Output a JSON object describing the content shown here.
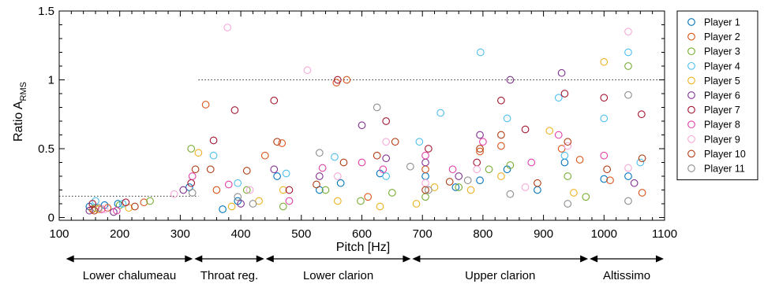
{
  "chart_data": {
    "type": "scatter",
    "title": "",
    "xlabel": "Pitch [Hz]",
    "ylabel_main": "Ratio A",
    "ylabel_sub": "RMS",
    "xlim": [
      100,
      1100
    ],
    "ylim": [
      -0.02,
      1.5
    ],
    "x_ticks": [
      100,
      200,
      300,
      400,
      500,
      600,
      700,
      800,
      900,
      1000,
      1100
    ],
    "x_tick_labels": [
      "100",
      "200",
      "300",
      "400",
      "500",
      "600",
      "700",
      "800",
      "900",
      "1000",
      "1100"
    ],
    "y_ticks": [
      0,
      0.5,
      1,
      1.5
    ],
    "y_tick_labels": [
      "0",
      "0.5",
      "1",
      "1.5"
    ],
    "grid": false,
    "legend_position": "outside-right",
    "reference_lines": [
      {
        "y": 1.0,
        "style": "dotted",
        "x_from": 330,
        "x_to": 1100
      },
      {
        "y": 0.155,
        "style": "dotted",
        "x_from": 100,
        "x_to": 330
      }
    ],
    "regions": [
      {
        "label": "Lower chalumeau",
        "x_from": 110,
        "x_to": 322
      },
      {
        "label": "Throat reg.",
        "x_from": 322,
        "x_to": 440
      },
      {
        "label": "Lower clarion",
        "x_from": 440,
        "x_to": 682
      },
      {
        "label": "Upper clarion",
        "x_from": 682,
        "x_to": 975
      },
      {
        "label": "Altissimo",
        "x_from": 975,
        "x_to": 1100
      }
    ],
    "series": [
      {
        "name": "Player 1",
        "color": "#0072bd",
        "points": [
          [
            150,
            0.08
          ],
          [
            175,
            0.09
          ],
          [
            197,
            0.1
          ],
          [
            315,
            0.22
          ],
          [
            370,
            0.06
          ],
          [
            395,
            0.12
          ],
          [
            460,
            0.3
          ],
          [
            530,
            0.2
          ],
          [
            565,
            0.25
          ],
          [
            630,
            0.32
          ],
          [
            705,
            0.3
          ],
          [
            755,
            0.22
          ],
          [
            795,
            0.27
          ],
          [
            840,
            0.35
          ],
          [
            890,
            0.2
          ],
          [
            935,
            0.4
          ],
          [
            1000,
            0.28
          ],
          [
            1040,
            0.3
          ]
        ]
      },
      {
        "name": "Player 2",
        "color": "#d95319",
        "points": [
          [
            155,
            0.06
          ],
          [
            180,
            0.07
          ],
          [
            240,
            0.11
          ],
          [
            342,
            0.82
          ],
          [
            360,
            0.2
          ],
          [
            440,
            0.45
          ],
          [
            468,
            0.54
          ],
          [
            558,
            0.98
          ],
          [
            575,
            1.0
          ],
          [
            610,
            0.15
          ],
          [
            705,
            0.35
          ],
          [
            795,
            0.48
          ],
          [
            830,
            0.52
          ],
          [
            930,
            0.5
          ],
          [
            960,
            0.42
          ],
          [
            1010,
            0.27
          ],
          [
            1063,
            0.18
          ]
        ]
      },
      {
        "name": "Player 3",
        "color": "#77ac30",
        "points": [
          [
            160,
            0.07
          ],
          [
            200,
            0.09
          ],
          [
            250,
            0.12
          ],
          [
            318,
            0.5
          ],
          [
            410,
            0.2
          ],
          [
            470,
            0.08
          ],
          [
            540,
            0.2
          ],
          [
            598,
            0.12
          ],
          [
            650,
            0.18
          ],
          [
            705,
            0.15
          ],
          [
            760,
            0.22
          ],
          [
            810,
            0.35
          ],
          [
            845,
            0.38
          ],
          [
            940,
            0.3
          ],
          [
            970,
            0.15
          ],
          [
            1040,
            1.1
          ]
        ]
      },
      {
        "name": "Player 4",
        "color": "#4dbeee",
        "points": [
          [
            160,
            0.12
          ],
          [
            205,
            0.1
          ],
          [
            355,
            0.45
          ],
          [
            395,
            0.25
          ],
          [
            475,
            0.32
          ],
          [
            555,
            0.44
          ],
          [
            640,
            0.3
          ],
          [
            695,
            0.55
          ],
          [
            730,
            0.76
          ],
          [
            796,
            1.2
          ],
          [
            840,
            0.72
          ],
          [
            925,
            0.87
          ],
          [
            935,
            0.45
          ],
          [
            1000,
            0.72
          ],
          [
            1040,
            1.2
          ],
          [
            1060,
            0.4
          ]
        ]
      },
      {
        "name": "Player 5",
        "color": "#edb120",
        "points": [
          [
            165,
            0.06
          ],
          [
            215,
            0.07
          ],
          [
            330,
            0.47
          ],
          [
            385,
            0.08
          ],
          [
            430,
            0.12
          ],
          [
            470,
            0.2
          ],
          [
            560,
            0.12
          ],
          [
            630,
            0.08
          ],
          [
            690,
            0.1
          ],
          [
            720,
            0.22
          ],
          [
            780,
            0.2
          ],
          [
            830,
            0.3
          ],
          [
            910,
            0.63
          ],
          [
            950,
            0.18
          ],
          [
            1000,
            1.13
          ]
        ]
      },
      {
        "name": "Player 6",
        "color": "#7e2f8e",
        "points": [
          [
            150,
            0.05
          ],
          [
            190,
            0.04
          ],
          [
            305,
            0.2
          ],
          [
            400,
            0.1
          ],
          [
            455,
            0.35
          ],
          [
            530,
            0.3
          ],
          [
            600,
            0.67
          ],
          [
            640,
            0.43
          ],
          [
            705,
            0.4
          ],
          [
            760,
            0.3
          ],
          [
            795,
            0.6
          ],
          [
            845,
            1.0
          ],
          [
            930,
            1.05
          ],
          [
            1050,
            0.25
          ]
        ]
      },
      {
        "name": "Player 7",
        "color": "#a2142f",
        "points": [
          [
            155,
            0.1
          ],
          [
            210,
            0.11
          ],
          [
            318,
            0.25
          ],
          [
            355,
            0.56
          ],
          [
            390,
            0.78
          ],
          [
            455,
            0.85
          ],
          [
            480,
            0.2
          ],
          [
            560,
            1.0
          ],
          [
            640,
            0.7
          ],
          [
            710,
            0.5
          ],
          [
            790,
            0.4
          ],
          [
            830,
            0.85
          ],
          [
            870,
            0.64
          ],
          [
            935,
            0.9
          ],
          [
            1000,
            0.87
          ],
          [
            1062,
            0.75
          ]
        ]
      },
      {
        "name": "Player 8",
        "color": "#e040a8",
        "points": [
          [
            170,
            0.06
          ],
          [
            195,
            0.05
          ],
          [
            320,
            0.3
          ],
          [
            380,
            0.24
          ],
          [
            480,
            0.12
          ],
          [
            535,
            0.36
          ],
          [
            600,
            0.4
          ],
          [
            635,
            0.35
          ],
          [
            705,
            0.45
          ],
          [
            750,
            0.35
          ],
          [
            800,
            0.55
          ],
          [
            880,
            0.4
          ],
          [
            925,
            0.6
          ],
          [
            1000,
            0.45
          ]
        ]
      },
      {
        "name": "Player 9",
        "color": "#f6a8d8",
        "points": [
          [
            175,
            0.06
          ],
          [
            290,
            0.17
          ],
          [
            378,
            1.38
          ],
          [
            415,
            0.2
          ],
          [
            510,
            1.07
          ],
          [
            560,
            0.3
          ],
          [
            640,
            0.55
          ],
          [
            705,
            0.25
          ],
          [
            790,
            0.35
          ],
          [
            870,
            0.22
          ],
          [
            940,
            0.52
          ],
          [
            1040,
            1.35
          ],
          [
            1040,
            0.36
          ]
        ]
      },
      {
        "name": "Player 10",
        "color": "#b03a10",
        "points": [
          [
            158,
            0.05
          ],
          [
            225,
            0.08
          ],
          [
            325,
            0.35
          ],
          [
            350,
            0.35
          ],
          [
            410,
            0.34
          ],
          [
            460,
            0.55
          ],
          [
            525,
            0.24
          ],
          [
            570,
            0.4
          ],
          [
            625,
            0.45
          ],
          [
            655,
            0.55
          ],
          [
            705,
            0.2
          ],
          [
            745,
            0.26
          ],
          [
            795,
            0.5
          ],
          [
            830,
            0.6
          ],
          [
            890,
            0.25
          ],
          [
            940,
            0.55
          ],
          [
            1005,
            0.35
          ],
          [
            1063,
            0.43
          ]
        ]
      },
      {
        "name": "Player 11",
        "color": "#8c8c8c",
        "points": [
          [
            165,
            0.07
          ],
          [
            320,
            0.18
          ],
          [
            395,
            0.15
          ],
          [
            420,
            0.1
          ],
          [
            530,
            0.47
          ],
          [
            625,
            0.8
          ],
          [
            680,
            0.37
          ],
          [
            710,
            0.2
          ],
          [
            775,
            0.27
          ],
          [
            845,
            0.17
          ],
          [
            940,
            0.1
          ],
          [
            1040,
            0.89
          ],
          [
            1040,
            0.12
          ]
        ]
      }
    ]
  }
}
